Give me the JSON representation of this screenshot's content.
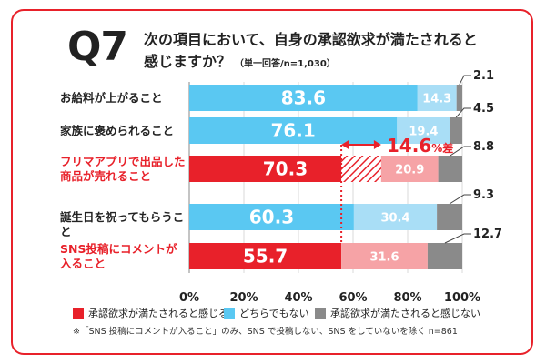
{
  "question": {
    "number": "Q7",
    "line1": "次の項目において、自身の承認欲求が満たされると",
    "line2": "感じますか？",
    "note": "（単一回答/n=1,030）"
  },
  "callout": {
    "value": "14.6",
    "suffix": "%差"
  },
  "colors": {
    "yes_red": "#e8212a",
    "yes_blue": "#5ac8f2",
    "neutral_red": "#f6a3a6",
    "neutral_blue": "#a9def6",
    "no": "#8a8a8a"
  },
  "chart_data": {
    "type": "bar",
    "orientation": "horizontal-stacked",
    "categories": [
      "お給料が上がること",
      "家族に褒められること",
      "フリマアプリで出品した商品が売れること",
      "誕生日を祝ってもらうこと",
      "SNS投稿にコメントが入ること"
    ],
    "category_lines": [
      [
        "お給料が上がること"
      ],
      [
        "家族に褒められること"
      ],
      [
        "フリマアプリで出品した",
        "商品が売れること"
      ],
      [
        "誕生日を祝ってもらうこと"
      ],
      [
        "SNS投稿にコメントが",
        "入ること"
      ]
    ],
    "highlight": [
      false,
      false,
      true,
      false,
      true
    ],
    "series": [
      {
        "name": "承認欲求が満たされると感じる",
        "values": [
          83.6,
          76.1,
          70.3,
          60.3,
          55.7
        ]
      },
      {
        "name": "どちらでもない",
        "values": [
          14.3,
          19.4,
          20.9,
          30.4,
          31.6
        ]
      },
      {
        "name": "承認欲求が満たされると感じない",
        "values": [
          2.1,
          4.5,
          8.8,
          9.3,
          12.7
        ]
      }
    ],
    "xlim": [
      0,
      100
    ],
    "xticks": [
      "0%",
      "20%",
      "40%",
      "60%",
      "80%",
      "100%"
    ],
    "legend_position": "bottom"
  },
  "footnote": "※「SNS 投稿にコメントが入ること」のみ、SNS で投稿しない、SNS をしていないを除く n=861"
}
